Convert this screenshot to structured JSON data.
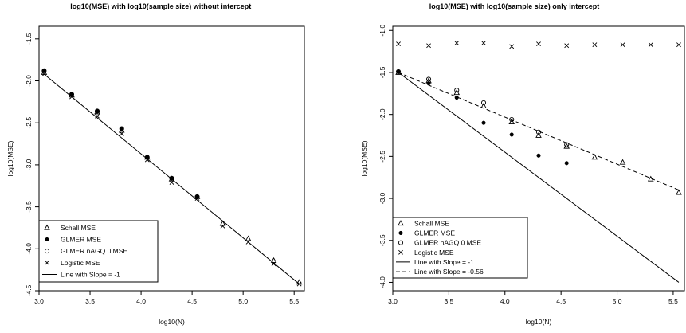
{
  "chart_data": [
    {
      "type": "scatter",
      "title": "log10(MSE) with log10(sample size) without intercept",
      "xlabel": "log10(N)",
      "ylabel": "log10(MSE)",
      "xlim": [
        3.0,
        5.6
      ],
      "ylim": [
        -4.5,
        -1.35
      ],
      "xticks": [
        "3.0",
        "3.5",
        "4.0",
        "4.5",
        "5.0",
        "5.5"
      ],
      "yticks": [
        "-4.5",
        "-4.0",
        "-3.5",
        "-3.0",
        "-2.5",
        "-2.0",
        "-1.5"
      ],
      "legend_position": "bottom-left",
      "series": [
        {
          "name": "Schall MSE",
          "marker": "triangle",
          "x": [
            3.05,
            3.32,
            3.57,
            3.81,
            4.06,
            4.3,
            4.55,
            4.8,
            5.05,
            5.3,
            5.55
          ],
          "y": [
            -1.9,
            -2.17,
            -2.37,
            -2.59,
            -2.91,
            -3.17,
            -3.38,
            -3.7,
            -3.88,
            -4.14,
            -4.4
          ]
        },
        {
          "name": "GLMER MSE",
          "marker": "dot",
          "x": [
            3.05,
            3.32,
            3.57,
            3.81,
            4.06,
            4.3,
            4.55
          ],
          "y": [
            -1.88,
            -2.16,
            -2.36,
            -2.57,
            -2.91,
            -3.16,
            -3.38
          ]
        },
        {
          "name": "GLMER nAGQ 0 MSE",
          "marker": "circle",
          "x": [
            3.05,
            3.32,
            3.57,
            3.81,
            4.06,
            4.3,
            4.55
          ],
          "y": [
            -1.88,
            -2.16,
            -2.36,
            -2.57,
            -2.91,
            -3.16,
            -3.38
          ]
        },
        {
          "name": "Logistic MSE",
          "marker": "cross",
          "x": [
            3.05,
            3.32,
            3.57,
            3.81,
            4.06,
            4.3,
            4.55,
            4.8,
            5.05,
            5.3,
            5.55
          ],
          "y": [
            -1.92,
            -2.19,
            -2.42,
            -2.63,
            -2.94,
            -3.21,
            -3.4,
            -3.73,
            -3.92,
            -4.18,
            -4.42
          ]
        }
      ],
      "lines": [
        {
          "name": "Line with Slope = -1",
          "style": "solid",
          "from": [
            3.05,
            -1.92
          ],
          "to": [
            5.55,
            -4.42
          ]
        }
      ]
    },
    {
      "type": "scatter",
      "title": "log10(MSE) with log10(sample size) only intercept",
      "xlabel": "log10(N)",
      "ylabel": "log10(MSE)",
      "xlim": [
        3.0,
        5.6
      ],
      "ylim": [
        -4.1,
        -0.95
      ],
      "xticks": [
        "3.0",
        "3.5",
        "4.0",
        "4.5",
        "5.0",
        "5.5"
      ],
      "yticks": [
        "-4.0",
        "-3.5",
        "-3.0",
        "-2.5",
        "-2.0",
        "-1.5",
        "-1.0"
      ],
      "legend_position": "bottom-left",
      "series": [
        {
          "name": "Schall MSE",
          "marker": "triangle",
          "x": [
            3.05,
            3.32,
            3.57,
            3.81,
            4.06,
            4.3,
            4.55,
            4.8,
            5.05,
            5.3,
            5.55
          ],
          "y": [
            -1.5,
            -1.6,
            -1.74,
            -1.9,
            -2.09,
            -2.25,
            -2.38,
            -2.51,
            -2.57,
            -2.77,
            -2.93
          ]
        },
        {
          "name": "GLMER MSE",
          "marker": "dot",
          "x": [
            3.05,
            3.32,
            3.57,
            3.81,
            4.06,
            4.3,
            4.55
          ],
          "y": [
            -1.49,
            -1.63,
            -1.8,
            -2.1,
            -2.24,
            -2.49,
            -2.58
          ]
        },
        {
          "name": "GLMER nAGQ 0 MSE",
          "marker": "circle",
          "x": [
            3.05,
            3.32,
            3.57,
            3.81,
            4.06,
            4.3,
            4.55
          ],
          "y": [
            -1.49,
            -1.58,
            -1.71,
            -1.86,
            -2.06,
            -2.21,
            -2.36
          ]
        },
        {
          "name": "Logistic MSE",
          "marker": "cross",
          "x": [
            3.05,
            3.32,
            3.57,
            3.81,
            4.06,
            4.3,
            4.55,
            4.8,
            5.05,
            5.3,
            5.55
          ],
          "y": [
            -1.16,
            -1.18,
            -1.15,
            -1.15,
            -1.19,
            -1.16,
            -1.18,
            -1.17,
            -1.17,
            -1.17,
            -1.17
          ]
        }
      ],
      "lines": [
        {
          "name": "Line with Slope = -1",
          "style": "solid",
          "from": [
            3.05,
            -1.5
          ],
          "to": [
            5.55,
            -4.0
          ]
        },
        {
          "name": "Line with Slope = -0.56",
          "style": "dashed",
          "from": [
            3.05,
            -1.5
          ],
          "to": [
            5.55,
            -2.9
          ]
        }
      ]
    }
  ]
}
